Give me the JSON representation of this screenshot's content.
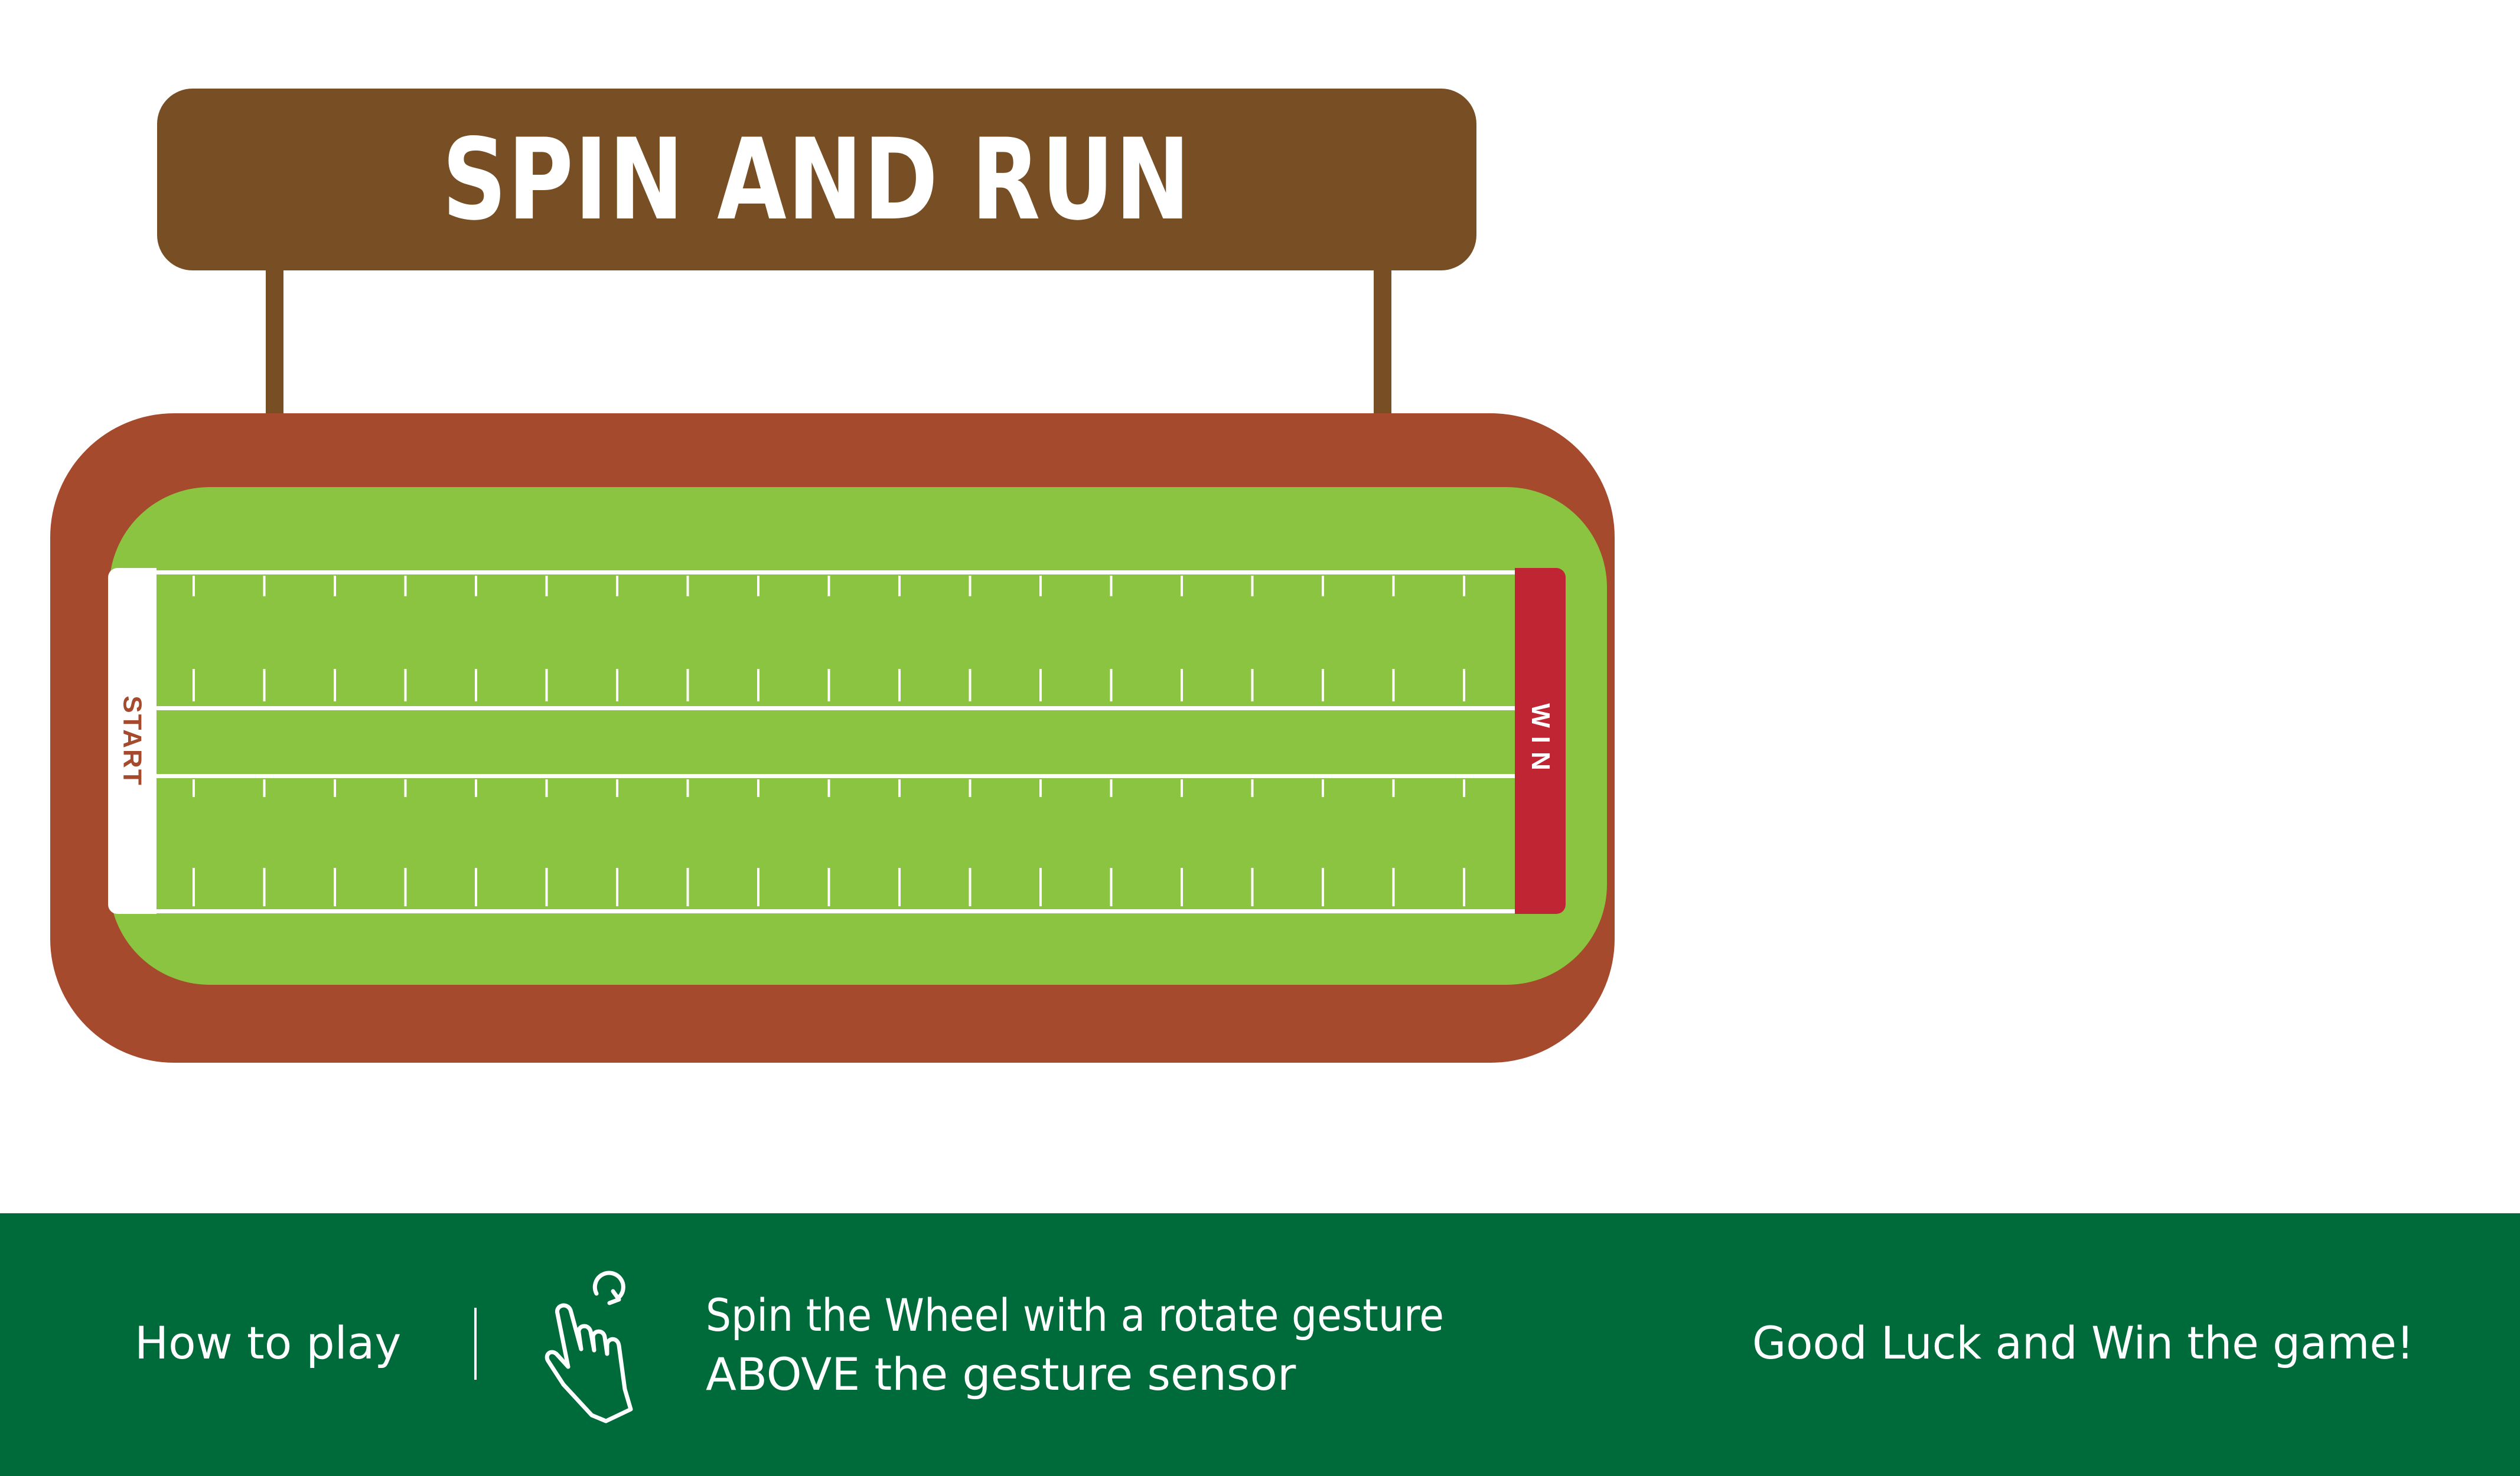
{
  "game": {
    "title": "SPIN AND RUN",
    "start_label": "START",
    "win_label": "WIN"
  },
  "instructions": {
    "how_to_play": "How to play",
    "line1": "Spin the Wheel with a rotate gesture",
    "line2": "ABOVE  the gesture sensor",
    "good_luck": "Good Luck and Win the game!"
  },
  "icons": {
    "gesture": "rotate-gesture-hand-icon"
  },
  "colors": {
    "sign_brown": "#784e24",
    "track_red_brown": "#a54a2c",
    "field_green": "#8bc441",
    "win_red": "#bf2533",
    "bar_green": "#006b3a"
  }
}
